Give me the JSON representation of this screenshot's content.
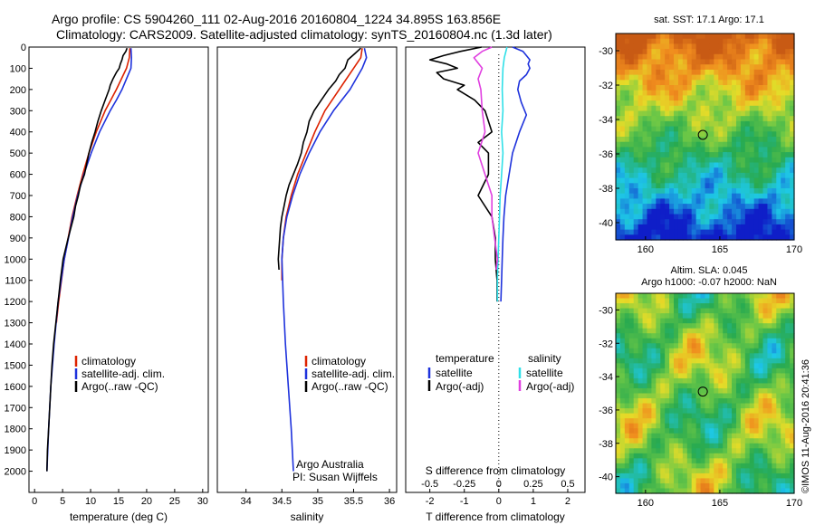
{
  "header": {
    "title_line1": "Argo profile: CS 5904260_111 02-Aug-2016 20160804_1224 34.895S 163.856E",
    "title_line2": "Climatology: CARS2009. Satellite-adjusted climatology: synTS_20160804.nc (1.3d later)"
  },
  "credits": {
    "org": "Argo Australia",
    "pi": "PI: Susan Wijffels",
    "stamp": "©IMOS 11-Aug-2016 20:41:36"
  },
  "colors": {
    "climatology": "#dd2200",
    "satellite": "#1e32dc",
    "argo": "#000000",
    "sal_satellite": "#30e0e8",
    "argo_adj": "#e040e0"
  },
  "chart_data": [
    {
      "type": "line",
      "xlabel": "temperature (deg C)",
      "xlim": [
        -1,
        31
      ],
      "xticks": [
        "0",
        "5",
        "10",
        "15",
        "20",
        "25",
        "30"
      ],
      "ylim": [
        2100,
        0
      ],
      "yticks": [
        "0",
        "100",
        "200",
        "300",
        "400",
        "500",
        "600",
        "700",
        "800",
        "900",
        "1000",
        "1100",
        "1200",
        "1300",
        "1400",
        "1500",
        "1600",
        "1700",
        "1800",
        "1900",
        "2000"
      ],
      "legend": [
        "climatology",
        "satellite-adj. clim.",
        "Argo(..raw -QC)"
      ],
      "series": [
        {
          "name": "climatology",
          "depth": [
            5,
            50,
            100,
            150,
            200,
            250,
            300,
            400,
            500,
            600,
            700,
            800,
            1000,
            1200,
            1300
          ],
          "values": [
            17.0,
            16.9,
            16.4,
            15.5,
            14.6,
            13.6,
            12.6,
            11.0,
            9.7,
            8.6,
            7.6,
            6.7,
            5.3,
            4.3,
            3.9
          ]
        },
        {
          "name": "satellite-adj. clim.",
          "depth": [
            5,
            50,
            100,
            150,
            200,
            250,
            300,
            400,
            500,
            600,
            700,
            800,
            1000,
            1200,
            1400,
            1600,
            1800,
            2000
          ],
          "values": [
            17.2,
            17.3,
            17.2,
            16.4,
            15.6,
            14.6,
            13.5,
            11.6,
            10.1,
            8.8,
            7.7,
            6.8,
            5.3,
            4.2,
            3.5,
            2.9,
            2.5,
            2.2
          ]
        },
        {
          "name": "Argo(..raw -QC)",
          "depth": [
            5,
            20,
            40,
            60,
            80,
            100,
            120,
            150,
            180,
            200,
            250,
            300,
            350,
            400,
            450,
            500,
            550,
            600,
            650,
            700,
            750,
            800,
            900,
            1000,
            1100,
            1200,
            1300,
            1400,
            1500,
            1600,
            1700,
            1800,
            1900,
            2000
          ],
          "values": [
            16.5,
            16.3,
            15.8,
            15.6,
            15.3,
            15.1,
            14.6,
            14.0,
            13.5,
            13.3,
            12.6,
            11.9,
            11.3,
            10.8,
            10.2,
            9.7,
            9.3,
            8.9,
            8.2,
            7.8,
            7.3,
            7.0,
            6.0,
            5.1,
            4.6,
            4.2,
            3.8,
            3.4,
            3.1,
            2.9,
            2.7,
            2.5,
            2.3,
            2.2
          ]
        }
      ]
    },
    {
      "type": "line",
      "xlabel": "salinity",
      "xlim": [
        33.6,
        36.1
      ],
      "xticks": [
        "34",
        "34.5",
        "35",
        "35.5",
        "36"
      ],
      "ylim": [
        2100,
        0
      ],
      "legend": [
        "climatology",
        "satellite-adj. clim.",
        "Argo(..raw -QC)"
      ],
      "series": [
        {
          "name": "climatology",
          "depth": [
            5,
            50,
            100,
            200,
            300,
            400,
            500,
            600,
            700,
            800,
            900,
            1000,
            1100
          ],
          "values": [
            35.62,
            35.6,
            35.5,
            35.3,
            35.1,
            34.96,
            34.84,
            34.72,
            34.63,
            34.56,
            34.52,
            34.5,
            34.5
          ]
        },
        {
          "name": "satellite-adj. clim.",
          "depth": [
            5,
            50,
            100,
            200,
            300,
            400,
            500,
            600,
            700,
            800,
            900,
            1000,
            1200,
            1400,
            1600,
            1800,
            2000
          ],
          "values": [
            35.65,
            35.68,
            35.62,
            35.45,
            35.22,
            35.03,
            34.88,
            34.75,
            34.65,
            34.57,
            34.52,
            34.5,
            34.52,
            34.55,
            34.59,
            34.63,
            34.66
          ]
        },
        {
          "name": "Argo(..raw -QC)",
          "depth": [
            5,
            30,
            60,
            100,
            130,
            160,
            200,
            250,
            300,
            350,
            400,
            450,
            500,
            550,
            600,
            650,
            700,
            750,
            800,
            850,
            900,
            950,
            1000,
            1050
          ],
          "values": [
            35.6,
            35.52,
            35.42,
            35.38,
            35.3,
            35.25,
            35.15,
            35.05,
            34.95,
            34.88,
            34.85,
            34.8,
            34.77,
            34.72,
            34.66,
            34.6,
            34.56,
            34.53,
            34.5,
            34.48,
            34.47,
            34.46,
            34.45,
            34.46
          ]
        }
      ]
    },
    {
      "type": "line",
      "xlabel": "T difference from climatology",
      "xlabel_top": "S difference from climatology",
      "xlim": [
        -2.7,
        2.5
      ],
      "xticks": [
        "-2",
        "-1",
        "0",
        "1",
        "2"
      ],
      "xticks_top": [
        "-0.5",
        "-0.25",
        "0",
        "0.25",
        "0.5"
      ],
      "ylim": [
        2100,
        0
      ],
      "legend": {
        "temperature_header": "temperature",
        "salinity_header": "salinity",
        "items": [
          "satellite",
          "Argo(-adj)",
          "satellite",
          "Argo(-adj)"
        ]
      },
      "series": [
        {
          "name": "satellite",
          "quantity": "temperature",
          "depth": [
            0,
            20,
            40,
            60,
            80,
            100,
            130,
            160,
            200,
            260,
            320,
            400,
            500,
            600,
            700,
            800,
            900,
            1000,
            1100,
            1200
          ],
          "values": [
            0.4,
            0.7,
            0.8,
            0.9,
            0.85,
            0.9,
            0.8,
            0.6,
            0.55,
            0.65,
            0.8,
            0.6,
            0.4,
            0.3,
            0.2,
            0.15,
            0.12,
            0.1,
            0.08,
            0.06
          ]
        },
        {
          "name": "Argo(-adj)",
          "quantity": "temperature",
          "depth": [
            0,
            20,
            40,
            60,
            80,
            100,
            120,
            150,
            180,
            200,
            250,
            300,
            350,
            400,
            450,
            500,
            600,
            700,
            800,
            900,
            1000,
            1100,
            1200
          ],
          "values": [
            -0.5,
            -1.1,
            -1.6,
            -2.0,
            -1.5,
            -1.2,
            -1.8,
            -1.6,
            -1.0,
            -1.2,
            -0.7,
            -0.4,
            -0.3,
            -0.2,
            -0.6,
            -0.3,
            -0.3,
            -0.6,
            -0.2,
            -0.1,
            -0.1,
            -0.05,
            -0.05
          ]
        },
        {
          "name": "satellite",
          "quantity": "salinity",
          "depth": [
            0,
            50,
            100,
            200,
            300,
            400,
            500,
            600,
            700,
            800,
            900,
            1000,
            1100,
            1200
          ],
          "values": [
            0.06,
            0.04,
            0.03,
            0.025,
            0.03,
            0.02,
            0.03,
            0.02,
            0.01,
            0.005,
            0.0,
            -0.005,
            -0.01,
            -0.01
          ]
        },
        {
          "name": "Argo(-adj)",
          "quantity": "salinity",
          "depth": [
            0,
            20,
            50,
            100,
            150,
            200,
            300,
            400,
            500,
            600,
            700,
            800,
            900,
            1000,
            1050
          ],
          "values": [
            -0.05,
            -0.12,
            -0.18,
            -0.12,
            -0.15,
            -0.13,
            -0.12,
            -0.1,
            -0.15,
            -0.1,
            -0.05,
            -0.05,
            -0.03,
            -0.01,
            -0.02
          ]
        }
      ]
    },
    {
      "type": "heatmap",
      "title": "sat. SST: 17.1  Argo: 17.1",
      "xticks": [
        "160",
        "165",
        "170"
      ],
      "yticks": [
        "-30",
        "-32",
        "-34",
        "-36",
        "-38",
        "-40"
      ],
      "xlim": [
        158,
        170
      ],
      "ylim": [
        -41,
        -29
      ],
      "marker": {
        "lon": 163.856,
        "lat": -34.895
      }
    },
    {
      "type": "heatmap",
      "title": "Altim. SLA: 0.045",
      "subtitle": "Argo h1000: -0.07  h2000: NaN",
      "xticks": [
        "160",
        "165",
        "170"
      ],
      "yticks": [
        "-30",
        "-32",
        "-34",
        "-36",
        "-38",
        "-40"
      ],
      "xlim": [
        158,
        170
      ],
      "ylim": [
        -41,
        -29
      ],
      "marker": {
        "lon": 163.856,
        "lat": -34.895
      }
    }
  ]
}
